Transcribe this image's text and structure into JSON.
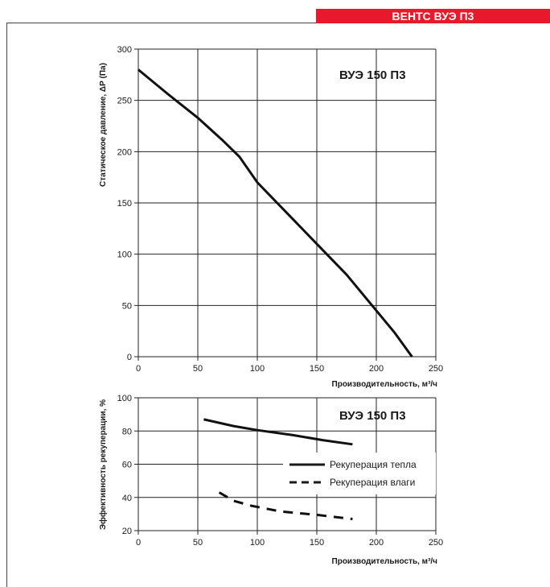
{
  "header": {
    "title": "ВЕНТС ВУЭ П3",
    "color": "#e8192c"
  },
  "chart_data": [
    {
      "type": "line",
      "title": "ВУЭ 150 П3",
      "xlabel": "Производительность, м³/ч",
      "ylabel": "Статическое давление, ΔР (Па)",
      "xlim": [
        0,
        250
      ],
      "ylim": [
        0,
        300
      ],
      "xticks": [
        0,
        50,
        100,
        150,
        200,
        250
      ],
      "yticks": [
        0,
        50,
        100,
        150,
        200,
        250,
        300
      ],
      "grid": true,
      "series": [
        {
          "style": "solid",
          "x": [
            0,
            25,
            50,
            70,
            85,
            100,
            120,
            150,
            175,
            200,
            215,
            230
          ],
          "y": [
            280,
            256,
            233,
            212,
            195,
            170,
            146,
            110,
            80,
            45,
            24,
            0
          ]
        }
      ]
    },
    {
      "type": "line",
      "title": "ВУЭ 150 П3",
      "xlabel": "Производительность, м³/ч",
      "ylabel": "Эффективность рекуперации, %",
      "xlim": [
        0,
        250
      ],
      "ylim": [
        20,
        100
      ],
      "xticks": [
        0,
        50,
        100,
        150,
        200,
        250
      ],
      "yticks": [
        20,
        40,
        60,
        80,
        100
      ],
      "grid": true,
      "legend": "right",
      "series": [
        {
          "name": "Рекуперация тепла",
          "style": "solid",
          "x": [
            55,
            80,
            100,
            130,
            155,
            180
          ],
          "y": [
            87,
            83,
            80.5,
            77.5,
            74.5,
            72
          ]
        },
        {
          "name": "Рекуперация влаги",
          "style": "dashed",
          "x": [
            68,
            80,
            95,
            120,
            150,
            180
          ],
          "y": [
            43,
            38,
            35,
            31.5,
            29.5,
            27
          ]
        }
      ]
    }
  ]
}
